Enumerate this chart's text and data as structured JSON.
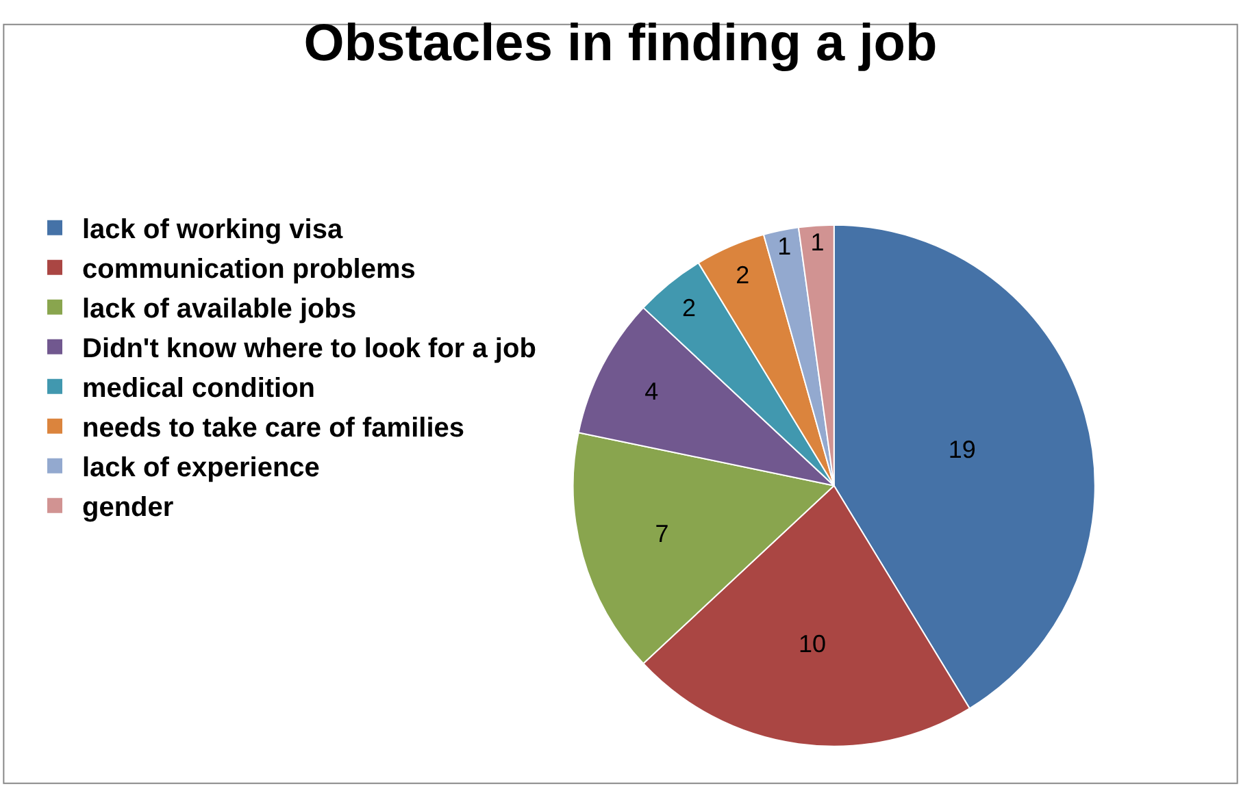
{
  "chart_data": {
    "type": "pie",
    "title": "Obstacles in finding a job",
    "categories": [
      "lack of working visa",
      "communication problems",
      "lack of available jobs",
      "Didn't know where to look for a job",
      "medical condition",
      "needs to take care of families",
      "lack of experience",
      "gender"
    ],
    "values": [
      19,
      10,
      7,
      4,
      2,
      2,
      1,
      1
    ],
    "colors": [
      "#4572a7",
      "#aa4643",
      "#89a54e",
      "#71588f",
      "#4198af",
      "#db843d",
      "#93a9cf",
      "#d19392"
    ],
    "data_labels": true,
    "legend": "top left"
  }
}
